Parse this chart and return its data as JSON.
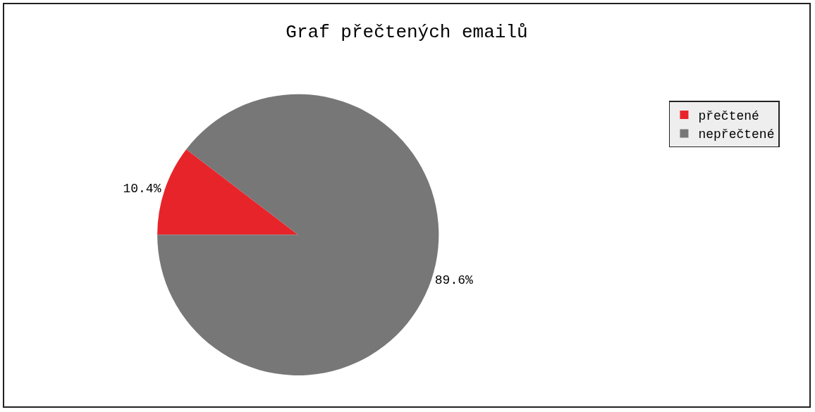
{
  "chart_data": {
    "type": "pie",
    "title": "Graf přečtených emailů",
    "categories": [
      "přečtené",
      "nepřečtené"
    ],
    "values": [
      10.4,
      89.6
    ],
    "colors": [
      "#e8242b",
      "#777777"
    ],
    "value_labels": [
      "10.4%",
      "89.6%"
    ],
    "legend": "top right"
  }
}
